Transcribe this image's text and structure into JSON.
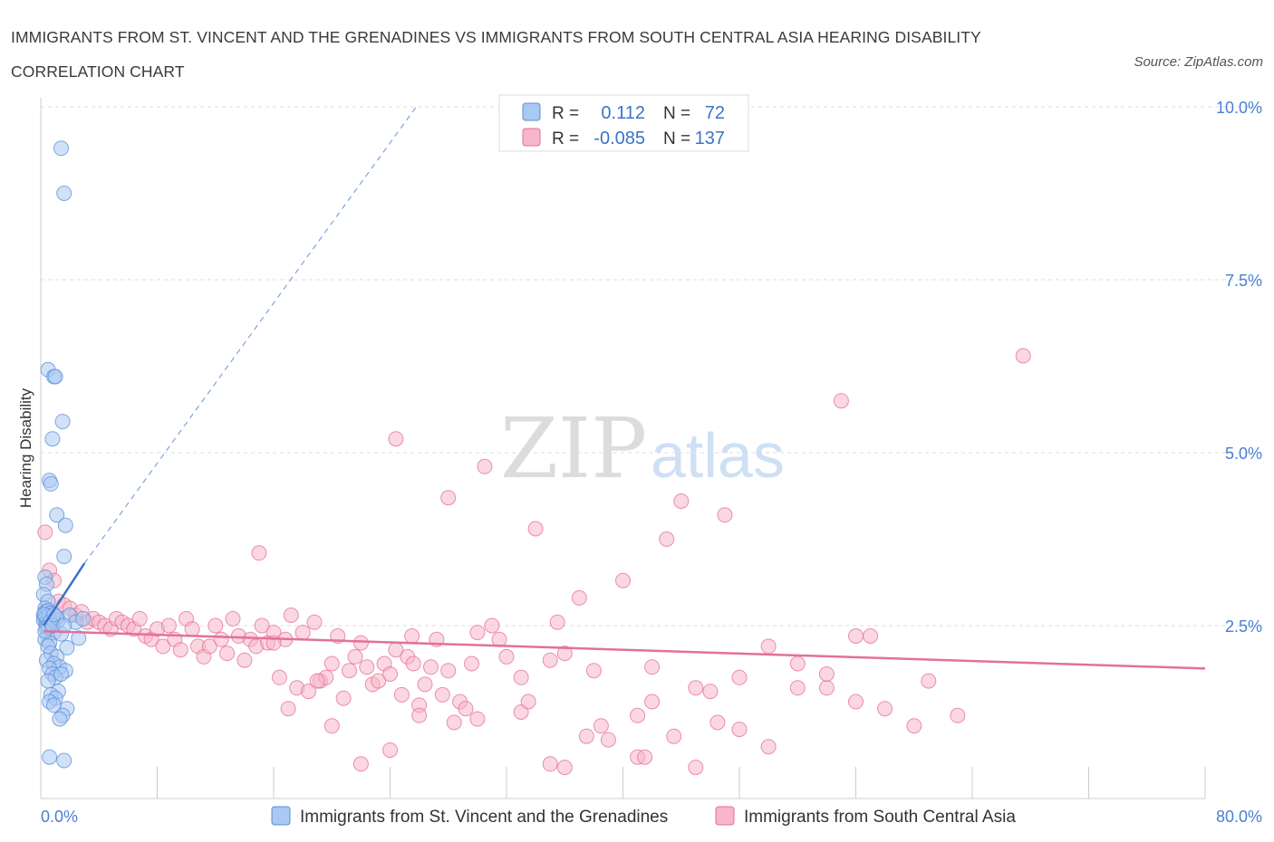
{
  "title": "IMMIGRANTS FROM ST. VINCENT AND THE GRENADINES VS IMMIGRANTS FROM SOUTH CENTRAL ASIA HEARING DISABILITY CORRELATION CHART",
  "source": "Source: ZipAtlas.com",
  "watermark": {
    "zip": "ZIP",
    "atlas": "atlas"
  },
  "legend": {
    "r_label": "R =",
    "n_label": "N =",
    "rows": [
      {
        "r": "0.112",
        "n": "72",
        "color": "#a9c8f2"
      },
      {
        "r": "-0.085",
        "n": "137",
        "color": "#f7b6c9"
      }
    ]
  },
  "bottom_legend": [
    {
      "label": "Immigrants from St. Vincent and the Grenadines",
      "color": "#a9c8f2"
    },
    {
      "label": "Immigrants from South Central Asia",
      "color": "#f7b6c9"
    }
  ],
  "chart_data": {
    "type": "scatter",
    "title": "IMMIGRANTS FROM ST. VINCENT AND THE GRENADINES VS IMMIGRANTS FROM SOUTH CENTRAL ASIA HEARING DISABILITY CORRELATION CHART",
    "xlabel": "",
    "ylabel": "Hearing Disability",
    "xlim": [
      0,
      80
    ],
    "ylim": [
      0,
      10.5
    ],
    "x_tick_labels": [
      "0.0%",
      "80.0%"
    ],
    "y_ticks": [
      2.5,
      5.0,
      7.5,
      10.0
    ],
    "y_tick_labels": [
      "2.5%",
      "5.0%",
      "7.5%",
      "10.0%"
    ],
    "grid": true,
    "legend_position": "top-center",
    "series": [
      {
        "name": "Immigrants from St. Vincent and the Grenadines",
        "color": "#a9c8f2",
        "stroke": "#5b8fd8",
        "trend": {
          "x": [
            0.2,
            3.0
          ],
          "y": [
            2.5,
            3.4
          ],
          "color": "#3b73c8"
        },
        "trend_ext": {
          "x": [
            3.0,
            25.8
          ],
          "y": [
            3.4,
            10.0
          ]
        },
        "points": [
          [
            1.4,
            9.4
          ],
          [
            1.6,
            8.75
          ],
          [
            0.5,
            6.2
          ],
          [
            0.9,
            6.1
          ],
          [
            1.0,
            6.1
          ],
          [
            1.5,
            5.45
          ],
          [
            0.8,
            5.2
          ],
          [
            0.6,
            4.6
          ],
          [
            0.7,
            4.55
          ],
          [
            1.1,
            4.1
          ],
          [
            1.7,
            3.95
          ],
          [
            1.6,
            3.5
          ],
          [
            0.3,
            3.2
          ],
          [
            0.4,
            3.1
          ],
          [
            0.2,
            2.95
          ],
          [
            0.5,
            2.85
          ],
          [
            0.3,
            2.75
          ],
          [
            0.4,
            2.7
          ],
          [
            0.2,
            2.65
          ],
          [
            0.5,
            2.6
          ],
          [
            0.6,
            2.62
          ],
          [
            0.3,
            2.55
          ],
          [
            0.8,
            2.6
          ],
          [
            1.2,
            2.58
          ],
          [
            2.0,
            2.65
          ],
          [
            2.4,
            2.55
          ],
          [
            0.4,
            2.45
          ],
          [
            0.9,
            2.4
          ],
          [
            1.4,
            2.38
          ],
          [
            0.3,
            2.3
          ],
          [
            0.6,
            2.25
          ],
          [
            0.5,
            2.2
          ],
          [
            1.8,
            2.18
          ],
          [
            0.7,
            2.1
          ],
          [
            1.1,
            2.05
          ],
          [
            0.4,
            2.0
          ],
          [
            0.9,
            1.95
          ],
          [
            1.3,
            1.9
          ],
          [
            0.6,
            1.88
          ],
          [
            1.7,
            1.85
          ],
          [
            0.8,
            1.8
          ],
          [
            1.0,
            1.75
          ],
          [
            0.5,
            1.7
          ],
          [
            1.4,
            1.8
          ],
          [
            1.2,
            1.55
          ],
          [
            0.7,
            1.5
          ],
          [
            1.0,
            1.45
          ],
          [
            0.6,
            1.4
          ],
          [
            0.9,
            1.35
          ],
          [
            1.8,
            1.3
          ],
          [
            1.5,
            1.2
          ],
          [
            1.3,
            1.15
          ],
          [
            0.6,
            0.6
          ],
          [
            1.6,
            0.55
          ],
          [
            0.3,
            2.7
          ],
          [
            0.5,
            2.72
          ],
          [
            0.2,
            2.58
          ],
          [
            0.4,
            2.52
          ],
          [
            0.7,
            2.68
          ],
          [
            2.9,
            2.6
          ],
          [
            2.6,
            2.32
          ],
          [
            0.35,
            2.62
          ],
          [
            0.45,
            2.58
          ],
          [
            0.55,
            2.64
          ],
          [
            0.25,
            2.66
          ],
          [
            0.65,
            2.56
          ],
          [
            0.5,
            2.48
          ],
          [
            0.3,
            2.42
          ],
          [
            1.1,
            2.62
          ],
          [
            0.8,
            2.5
          ],
          [
            0.9,
            2.66
          ],
          [
            1.6,
            2.5
          ]
        ]
      },
      {
        "name": "Immigrants from South Central Asia",
        "color": "#f7b6c9",
        "stroke": "#e36f97",
        "trend": {
          "x": [
            0.2,
            80.0
          ],
          "y": [
            2.42,
            1.88
          ],
          "color": "#e3709a"
        },
        "points": [
          [
            0.3,
            3.85
          ],
          [
            0.6,
            3.3
          ],
          [
            0.9,
            3.15
          ],
          [
            1.2,
            2.85
          ],
          [
            1.6,
            2.8
          ],
          [
            2.0,
            2.75
          ],
          [
            2.4,
            2.65
          ],
          [
            2.8,
            2.7
          ],
          [
            3.2,
            2.55
          ],
          [
            3.6,
            2.6
          ],
          [
            4.0,
            2.55
          ],
          [
            4.4,
            2.5
          ],
          [
            4.8,
            2.45
          ],
          [
            5.2,
            2.6
          ],
          [
            5.6,
            2.55
          ],
          [
            6.0,
            2.5
          ],
          [
            6.4,
            2.45
          ],
          [
            6.8,
            2.6
          ],
          [
            7.2,
            2.35
          ],
          [
            7.6,
            2.3
          ],
          [
            8.0,
            2.45
          ],
          [
            8.4,
            2.2
          ],
          [
            8.8,
            2.5
          ],
          [
            9.2,
            2.3
          ],
          [
            9.6,
            2.15
          ],
          [
            10.0,
            2.6
          ],
          [
            10.4,
            2.45
          ],
          [
            10.8,
            2.2
          ],
          [
            11.2,
            2.05
          ],
          [
            11.6,
            2.2
          ],
          [
            12.0,
            2.5
          ],
          [
            12.4,
            2.3
          ],
          [
            12.8,
            2.1
          ],
          [
            13.2,
            2.6
          ],
          [
            13.6,
            2.35
          ],
          [
            14.0,
            2.0
          ],
          [
            14.4,
            2.3
          ],
          [
            14.8,
            2.2
          ],
          [
            15.2,
            2.5
          ],
          [
            15.6,
            2.25
          ],
          [
            16.0,
            2.4
          ],
          [
            16.4,
            1.75
          ],
          [
            16.8,
            2.3
          ],
          [
            17.2,
            2.65
          ],
          [
            17.6,
            1.6
          ],
          [
            18.0,
            2.4
          ],
          [
            18.4,
            1.55
          ],
          [
            18.8,
            2.55
          ],
          [
            19.2,
            1.7
          ],
          [
            19.6,
            1.75
          ],
          [
            20.0,
            1.95
          ],
          [
            20.4,
            2.35
          ],
          [
            20.8,
            1.45
          ],
          [
            21.2,
            1.85
          ],
          [
            21.6,
            2.05
          ],
          [
            22.0,
            2.25
          ],
          [
            22.4,
            1.9
          ],
          [
            22.8,
            1.65
          ],
          [
            23.2,
            1.7
          ],
          [
            23.6,
            1.95
          ],
          [
            24.0,
            1.8
          ],
          [
            24.4,
            2.15
          ],
          [
            24.8,
            1.5
          ],
          [
            25.2,
            2.05
          ],
          [
            25.6,
            1.95
          ],
          [
            26.0,
            1.35
          ],
          [
            26.4,
            1.65
          ],
          [
            26.8,
            1.9
          ],
          [
            27.2,
            2.3
          ],
          [
            27.6,
            1.5
          ],
          [
            28.0,
            1.85
          ],
          [
            28.4,
            1.1
          ],
          [
            28.8,
            1.4
          ],
          [
            29.2,
            1.3
          ],
          [
            29.6,
            1.95
          ],
          [
            30.0,
            2.4
          ],
          [
            31.0,
            2.5
          ],
          [
            32.0,
            2.05
          ],
          [
            33.0,
            1.75
          ],
          [
            34.0,
            3.9
          ],
          [
            35.0,
            2.0
          ],
          [
            36.0,
            2.1
          ],
          [
            37.0,
            2.9
          ],
          [
            38.0,
            1.85
          ],
          [
            40.0,
            3.15
          ],
          [
            41.0,
            1.2
          ],
          [
            42.0,
            1.4
          ],
          [
            43.0,
            3.75
          ],
          [
            44.0,
            4.3
          ],
          [
            45.0,
            1.6
          ],
          [
            46.0,
            1.55
          ],
          [
            47.0,
            4.1
          ],
          [
            48.0,
            1.75
          ],
          [
            50.0,
            2.2
          ],
          [
            52.0,
            1.95
          ],
          [
            54.0,
            1.6
          ],
          [
            55.0,
            5.75
          ],
          [
            56.0,
            2.35
          ],
          [
            58.0,
            1.3
          ],
          [
            60.0,
            1.05
          ],
          [
            63.0,
            1.2
          ],
          [
            67.5,
            6.4
          ],
          [
            24.4,
            5.2
          ],
          [
            26.0,
            1.2
          ],
          [
            28.0,
            4.35
          ],
          [
            30.0,
            1.15
          ],
          [
            31.5,
            2.3
          ],
          [
            33.0,
            1.25
          ],
          [
            35.0,
            0.5
          ],
          [
            36.0,
            0.45
          ],
          [
            37.5,
            0.9
          ],
          [
            39.0,
            0.85
          ],
          [
            41.0,
            0.6
          ],
          [
            41.5,
            0.6
          ],
          [
            42.0,
            1.9
          ],
          [
            43.5,
            0.9
          ],
          [
            45.0,
            0.45
          ],
          [
            46.5,
            1.1
          ],
          [
            48.0,
            1.0
          ],
          [
            50.0,
            0.75
          ],
          [
            52.0,
            1.6
          ],
          [
            54.0,
            1.8
          ],
          [
            56.0,
            1.4
          ],
          [
            20.0,
            1.05
          ],
          [
            22.0,
            0.5
          ],
          [
            24.0,
            0.7
          ],
          [
            15.0,
            3.55
          ],
          [
            16.0,
            2.25
          ],
          [
            25.5,
            2.35
          ],
          [
            35.5,
            2.55
          ],
          [
            38.5,
            1.05
          ],
          [
            17.0,
            1.3
          ],
          [
            19.0,
            1.7
          ],
          [
            33.5,
            1.4
          ],
          [
            57.0,
            2.35
          ],
          [
            30.5,
            4.8
          ],
          [
            61.0,
            1.7
          ]
        ]
      }
    ]
  }
}
